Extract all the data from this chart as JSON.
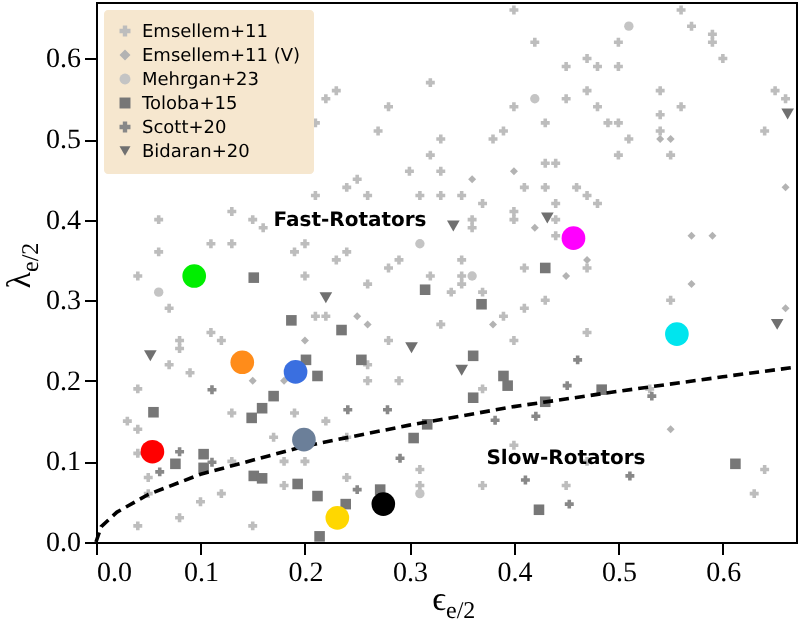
{
  "chart_data": {
    "type": "scatter",
    "xlabel": "ϵ$_{e/2}$",
    "ylabel": "λ$_{e/2}$",
    "xlim": [
      0,
      0.67
    ],
    "ylim": [
      0,
      0.67
    ],
    "xticks": [
      {
        "value": 0,
        "label": "0.0"
      },
      0.1,
      0.2,
      0.3,
      0.4,
      0.5,
      0.6
    ],
    "yticks": [
      {
        "value": 0,
        "label": "0.0"
      },
      0.1,
      0.2,
      0.3,
      0.4,
      0.5,
      0.6
    ],
    "legend": "top left",
    "annotations": [
      "Fast-Rotators",
      "Slow-Rotators"
    ],
    "series": [
      {
        "name": "Emsellem+11",
        "color": "#bdbdbd",
        "marker": "cross",
        "x": [
          0.06,
          0.06,
          0.04,
          0.07,
          0.13,
          0.15,
          0.16,
          0.19,
          0.2,
          0.23,
          0.24,
          0.21,
          0.22,
          0.23,
          0.21,
          0.24,
          0.25,
          0.26,
          0.28,
          0.27,
          0.26,
          0.11,
          0.13,
          0.2,
          0.4,
          0.56,
          0.57,
          0.59,
          0.59,
          0.6,
          0.42,
          0.5,
          0.45,
          0.47,
          0.48,
          0.5,
          0.32,
          0.4,
          0.43,
          0.45,
          0.47,
          0.48,
          0.49,
          0.5,
          0.54,
          0.56,
          0.54,
          0.54,
          0.55,
          0.51,
          0.5,
          0.65,
          0.66,
          0.64,
          0.39,
          0.38,
          0.33,
          0.32,
          0.3,
          0.33,
          0.35,
          0.33,
          0.31,
          0.36,
          0.36,
          0.37,
          0.43,
          0.44,
          0.41,
          0.43,
          0.46,
          0.44,
          0.47,
          0.48,
          0.4,
          0.4,
          0.44,
          0.44,
          0.41,
          0.47,
          0.55,
          0.35,
          0.35,
          0.35,
          0.34,
          0.37,
          0.28,
          0.29,
          0.32,
          0.41,
          0.43,
          0.08,
          0.08,
          0.11,
          0.12,
          0.09,
          0.07,
          0.04,
          0.03,
          0.04,
          0.04,
          0.05,
          0.05,
          0.04,
          0.08,
          0.1,
          0.12,
          0.15,
          0.13,
          0.17,
          0.18,
          0.18,
          0.2,
          0.19,
          0.21,
          0.22,
          0.26,
          0.26,
          0.24,
          0.24,
          0.29,
          0.28,
          0.22,
          0.13,
          0.33,
          0.39,
          0.4,
          0.47,
          0.37,
          0.4,
          0.31,
          0.31,
          0.37,
          0.45,
          0.64,
          0.63,
          0.53,
          0.47
        ],
        "values": [
          0.4,
          0.36,
          0.33,
          0.29,
          0.41,
          0.4,
          0.39,
          0.36,
          0.37,
          0.35,
          0.36,
          0.43,
          0.55,
          0.56,
          0.52,
          0.44,
          0.45,
          0.43,
          0.54,
          0.51,
          0.32,
          0.37,
          0.37,
          0.33,
          0.66,
          0.66,
          0.64,
          0.63,
          0.62,
          0.6,
          0.62,
          0.62,
          0.59,
          0.6,
          0.59,
          0.59,
          0.57,
          0.54,
          0.52,
          0.55,
          0.56,
          0.54,
          0.52,
          0.52,
          0.56,
          0.54,
          0.53,
          0.51,
          0.48,
          0.5,
          0.48,
          0.56,
          0.55,
          0.51,
          0.51,
          0.5,
          0.5,
          0.48,
          0.46,
          0.46,
          0.43,
          0.43,
          0.43,
          0.4,
          0.39,
          0.42,
          0.47,
          0.47,
          0.44,
          0.44,
          0.44,
          0.42,
          0.43,
          0.42,
          0.41,
          0.4,
          0.4,
          0.38,
          0.34,
          0.34,
          0.3,
          0.35,
          0.33,
          0.32,
          0.31,
          0.31,
          0.34,
          0.35,
          0.33,
          0.29,
          0.3,
          0.25,
          0.24,
          0.26,
          0.25,
          0.21,
          0.22,
          0.19,
          0.15,
          0.14,
          0.11,
          0.08,
          0.06,
          0.02,
          0.03,
          0.05,
          0.06,
          0.02,
          0.1,
          0.13,
          0.1,
          0.07,
          0.1,
          0.16,
          0.28,
          0.28,
          0.22,
          0.2,
          0.13,
          0.08,
          0.2,
          0.25,
          0.15,
          0.16,
          0.27,
          0.28,
          0.25,
          0.26,
          0.19,
          0.12,
          0.09,
          0.07,
          0.07,
          0.07,
          0.09,
          0.06,
          0.19,
          0.1
        ]
      },
      {
        "name": "Emsellem+11 (V)",
        "color": "#b3b3b3",
        "marker": "diamond",
        "x": [
          0.57,
          0.59,
          0.66,
          0.57,
          0.54,
          0.55,
          0.4,
          0.36,
          0.2,
          0.25,
          0.26,
          0.15,
          0.18,
          0.42,
          0.45,
          0.47,
          0.38,
          0.66,
          0.55
        ],
        "values": [
          0.38,
          0.38,
          0.29,
          0.32,
          0.5,
          0.5,
          0.46,
          0.45,
          0.25,
          0.28,
          0.27,
          0.2,
          0.2,
          0.39,
          0.33,
          0.35,
          0.27,
          0.44,
          0.14
        ]
      },
      {
        "name": "Mehrgan+23",
        "color": "#c4c4c4",
        "marker": "circle",
        "x": [
          0.51,
          0.42,
          0.31,
          0.36,
          0.31,
          0.06
        ],
        "values": [
          0.64,
          0.55,
          0.37,
          0.33,
          0.06,
          0.31
        ]
      },
      {
        "name": "Toloba+15",
        "color": "#777777",
        "marker": "square",
        "x": [
          0.055,
          0.076,
          0.103,
          0.103,
          0.149,
          0.159,
          0.17,
          0.201,
          0.212,
          0.187,
          0.235,
          0.254,
          0.151,
          0.159,
          0.193,
          0.212,
          0.214,
          0.239,
          0.272,
          0.361,
          0.39,
          0.394,
          0.361,
          0.317,
          0.304,
          0.43,
          0.484,
          0.424,
          0.612,
          0.43,
          0.315,
          0.369,
          0.151
        ],
        "values": [
          0.161,
          0.097,
          0.109,
          0.092,
          0.154,
          0.166,
          0.181,
          0.226,
          0.206,
          0.275,
          0.263,
          0.226,
          0.082,
          0.079,
          0.072,
          0.057,
          0.007,
          0.047,
          0.065,
          0.231,
          0.206,
          0.194,
          0.179,
          0.146,
          0.129,
          0.174,
          0.189,
          0.04,
          0.097,
          0.34,
          0.313,
          0.295,
          0.328
        ]
      },
      {
        "name": "Scott+20",
        "color": "#888888",
        "marker": "cross",
        "x": [
          0.111,
          0.08,
          0.061,
          0.111,
          0.241,
          0.279,
          0.25,
          0.291,
          0.461,
          0.451,
          0.421,
          0.382,
          0.532,
          0.411,
          0.511,
          0.453
        ],
        "values": [
          0.189,
          0.112,
          0.087,
          0.099,
          0.164,
          0.164,
          0.065,
          0.104,
          0.226,
          0.194,
          0.156,
          0.151,
          0.181,
          0.077,
          0.082,
          0.047
        ]
      },
      {
        "name": "Bidaran+20",
        "color": "#707070",
        "marker": "triangle",
        "x": [
          0.052,
          0.302,
          0.35,
          0.652,
          0.342,
          0.432,
          0.662,
          0.22
        ],
        "values": [
          0.231,
          0.241,
          0.213,
          0.27,
          0.392,
          0.402,
          0.531,
          0.303
        ]
      },
      {
        "marker": "circle",
        "colors": [
          "#00ee00",
          "#ff8c1a",
          "#3a6fe0",
          "#6b7f99",
          "#ff0000",
          "#ffd700",
          "#000000",
          "#ff00ff",
          "#00e5ee"
        ],
        "x": [
          0.094,
          0.14,
          0.191,
          0.199,
          0.054,
          0.231,
          0.275,
          0.457,
          0.556
        ],
        "values": [
          0.33,
          0.223,
          0.211,
          0.127,
          0.112,
          0.03,
          0.047,
          0.377,
          0.258
        ]
      },
      {
        "type": "line",
        "color": "#000000",
        "line_style": "dashed",
        "marker": "none",
        "x": [
          0,
          0.005,
          0.02,
          0.05,
          0.1,
          0.2,
          0.3,
          0.4,
          0.5,
          0.6,
          0.67
        ],
        "values": [
          0,
          0.019,
          0.037,
          0.059,
          0.084,
          0.119,
          0.145,
          0.168,
          0.187,
          0.205,
          0.217
        ]
      }
    ]
  }
}
